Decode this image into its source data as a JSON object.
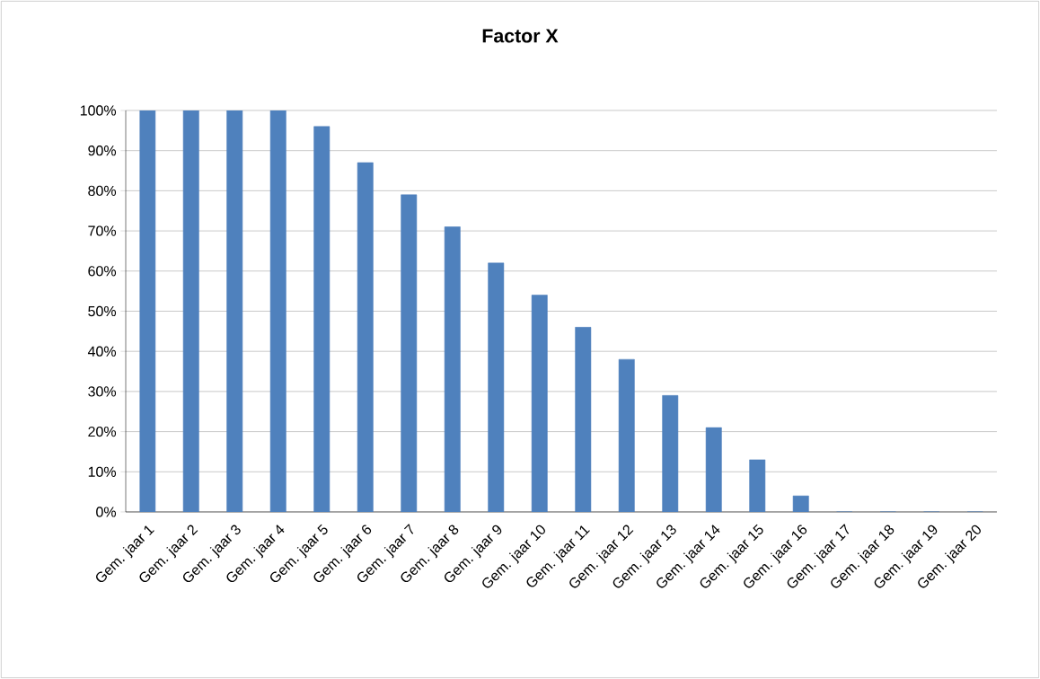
{
  "chart_data": {
    "type": "bar",
    "title": "Factor X",
    "categories": [
      "Gem. jaar 1",
      "Gem. jaar 2",
      "Gem. jaar 3",
      "Gem. jaar 4",
      "Gem. jaar 5",
      "Gem. jaar 6",
      "Gem. jaar 7",
      "Gem. jaar 8",
      "Gem. jaar 9",
      "Gem. jaar 10",
      "Gem. jaar 11",
      "Gem. jaar 12",
      "Gem. jaar 13",
      "Gem. jaar 14",
      "Gem. jaar 15",
      "Gem. jaar 16",
      "Gem. jaar 17",
      "Gem. jaar 18",
      "Gem. jaar 19",
      "Gem. jaar 20"
    ],
    "values": [
      100,
      100,
      100,
      100,
      96,
      87,
      79,
      71,
      62,
      54,
      46,
      38,
      29,
      21,
      13,
      4,
      0,
      0,
      0,
      0
    ],
    "color": "#4f81bd",
    "ylim": [
      0,
      100
    ],
    "yticks": [
      {
        "value": 0,
        "label": "0%"
      },
      {
        "value": 10,
        "label": "10%"
      },
      {
        "value": 20,
        "label": "20%"
      },
      {
        "value": 30,
        "label": "30%"
      },
      {
        "value": 40,
        "label": "40%"
      },
      {
        "value": 50,
        "label": "50%"
      },
      {
        "value": 60,
        "label": "60%"
      },
      {
        "value": 70,
        "label": "70%"
      },
      {
        "value": 80,
        "label": "80%"
      },
      {
        "value": 90,
        "label": "90%"
      },
      {
        "value": 100,
        "label": "100%"
      }
    ],
    "grid": "y"
  }
}
